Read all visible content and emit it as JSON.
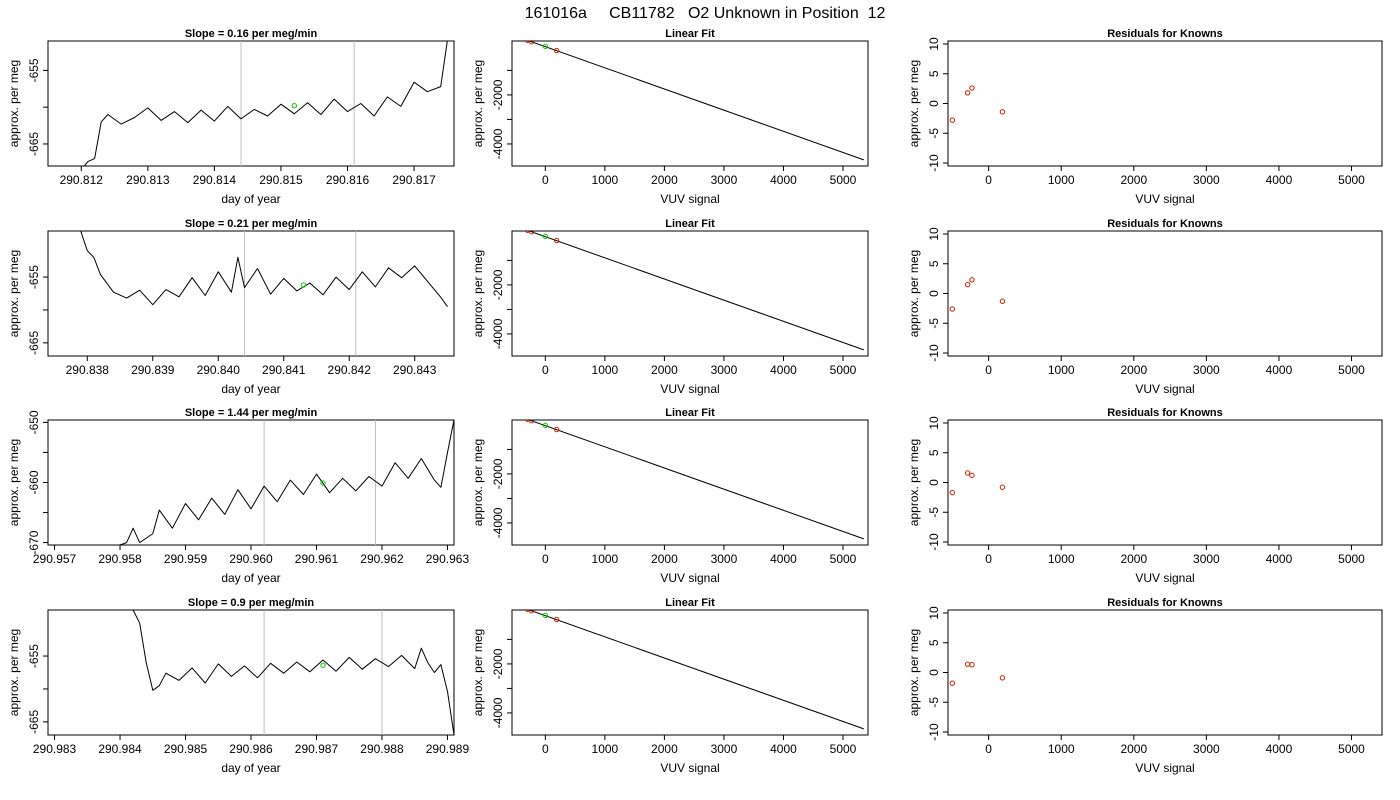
{
  "window": {
    "title": "161016a     CB11782   O2 Unknown in Position  12"
  },
  "colors": {
    "trace": "#000000",
    "vline": "#bebebe",
    "marker_green": "#00cc00",
    "marker_red": "#cc2200",
    "fit_line": "#000000"
  },
  "chart_data": [
    {
      "type": "line",
      "row": 1,
      "col": 1,
      "title": "Slope =  0.16  per meg/min",
      "xlabel": "day of year",
      "ylabel": "approx. per meg",
      "xlim": [
        290.8115,
        290.8176
      ],
      "ylim": [
        -668,
        -651
      ],
      "xticks": [
        290.812,
        290.813,
        290.814,
        290.815,
        290.816,
        290.817
      ],
      "xtick_labels": [
        "290.812",
        "290.813",
        "290.814",
        "290.815",
        "290.816",
        "290.817"
      ],
      "yticks": [
        -665,
        -660,
        -655
      ],
      "ytick_labels": [
        "-665",
        "",
        "-655"
      ],
      "vlines": [
        290.8144,
        290.8161
      ],
      "green_point": {
        "x": 290.8152,
        "y": -659.8
      },
      "trace": [
        [
          290.812,
          -668.5
        ],
        [
          290.8121,
          -667.4
        ],
        [
          290.8122,
          -667.0
        ],
        [
          290.8123,
          -662.0
        ],
        [
          290.8124,
          -661.0
        ],
        [
          290.8126,
          -662.3
        ],
        [
          290.8128,
          -661.4
        ],
        [
          290.813,
          -660.1
        ],
        [
          290.8132,
          -661.8
        ],
        [
          290.8134,
          -660.6
        ],
        [
          290.8136,
          -662.1
        ],
        [
          290.8138,
          -660.4
        ],
        [
          290.814,
          -661.9
        ],
        [
          290.8142,
          -659.9
        ],
        [
          290.8144,
          -661.6
        ],
        [
          290.8146,
          -660.3
        ],
        [
          290.8148,
          -661.2
        ],
        [
          290.815,
          -659.6
        ],
        [
          290.8152,
          -660.9
        ],
        [
          290.8154,
          -659.4
        ],
        [
          290.8156,
          -661.0
        ],
        [
          290.8158,
          -658.9
        ],
        [
          290.816,
          -660.6
        ],
        [
          290.8162,
          -659.5
        ],
        [
          290.8164,
          -661.2
        ],
        [
          290.8166,
          -658.6
        ],
        [
          290.8168,
          -659.9
        ],
        [
          290.817,
          -656.6
        ],
        [
          290.8172,
          -657.9
        ],
        [
          290.8174,
          -657.2
        ],
        [
          290.8175,
          -651.0
        ]
      ]
    },
    {
      "type": "line",
      "row": 1,
      "col": 2,
      "title": "Linear Fit",
      "xlabel": "VUV signal",
      "ylabel": "approx. per meg",
      "xlim": [
        -560,
        5420
      ],
      "ylim": [
        -4900,
        200
      ],
      "xticks": [
        0,
        1000,
        2000,
        3000,
        4000,
        5000
      ],
      "xtick_labels": [
        "0",
        "1000",
        "2000",
        "3000",
        "4000",
        "5000"
      ],
      "yticks": [
        -4000,
        -3000,
        -2000,
        -1000
      ],
      "ytick_labels": [
        "-4000",
        "",
        "-2000",
        ""
      ],
      "fit_line": [
        [
          -500,
          400
        ],
        [
          5350,
          -4650
        ]
      ],
      "red_points": [
        [
          -500,
          400
        ],
        [
          -300,
          230
        ],
        [
          -230,
          170
        ],
        [
          190,
          -190
        ]
      ],
      "green_point": [
        0,
        -20
      ]
    },
    {
      "type": "scatter",
      "row": 1,
      "col": 3,
      "title": "Residuals for Knowns",
      "xlabel": "VUV signal",
      "ylabel": "approx. per meg",
      "xlim": [
        -560,
        5420
      ],
      "ylim": [
        -10.5,
        10.5
      ],
      "xticks": [
        0,
        1000,
        2000,
        3000,
        4000,
        5000
      ],
      "xtick_labels": [
        "0",
        "1000",
        "2000",
        "3000",
        "4000",
        "5000"
      ],
      "yticks": [
        -10,
        -5,
        0,
        5,
        10
      ],
      "ytick_labels": [
        "-10",
        "-5",
        "0",
        "5",
        "10"
      ],
      "red_points": [
        [
          -500,
          -2.8
        ],
        [
          -290,
          1.8
        ],
        [
          -230,
          2.6
        ],
        [
          190,
          -1.4
        ]
      ]
    },
    {
      "type": "line",
      "row": 2,
      "col": 1,
      "title": "Slope =  0.21  per meg/min",
      "xlabel": "day of year",
      "ylabel": "approx. per meg",
      "xlim": [
        290.8374,
        290.8436
      ],
      "ylim": [
        -667,
        -648
      ],
      "xticks": [
        290.838,
        290.839,
        290.84,
        290.841,
        290.842,
        290.843
      ],
      "xtick_labels": [
        "290.838",
        "290.839",
        "290.840",
        "290.841",
        "290.842",
        "290.843"
      ],
      "yticks": [
        -665,
        -660,
        -655
      ],
      "ytick_labels": [
        "-665",
        "",
        "-655"
      ],
      "vlines": [
        290.8404,
        290.8421
      ],
      "green_point": {
        "x": 290.8413,
        "y": -656.2
      },
      "trace": [
        [
          290.8379,
          -648.0
        ],
        [
          290.838,
          -651.0
        ],
        [
          290.8381,
          -652.0
        ],
        [
          290.8382,
          -654.6
        ],
        [
          290.8384,
          -657.3
        ],
        [
          290.8386,
          -658.2
        ],
        [
          290.8388,
          -657.0
        ],
        [
          290.839,
          -659.2
        ],
        [
          290.8392,
          -656.9
        ],
        [
          290.8394,
          -658.0
        ],
        [
          290.8396,
          -655.1
        ],
        [
          290.8398,
          -657.8
        ],
        [
          290.84,
          -654.2
        ],
        [
          290.8402,
          -657.3
        ],
        [
          290.8403,
          -652.0
        ],
        [
          290.8404,
          -656.6
        ],
        [
          290.8406,
          -653.7
        ],
        [
          290.8408,
          -657.6
        ],
        [
          290.841,
          -655.2
        ],
        [
          290.8412,
          -657.1
        ],
        [
          290.8414,
          -655.9
        ],
        [
          290.8416,
          -657.7
        ],
        [
          290.8418,
          -655.0
        ],
        [
          290.842,
          -656.9
        ],
        [
          290.8422,
          -654.2
        ],
        [
          290.8424,
          -656.5
        ],
        [
          290.8426,
          -653.6
        ],
        [
          290.8428,
          -655.1
        ],
        [
          290.843,
          -653.3
        ],
        [
          290.8432,
          -655.7
        ],
        [
          290.8434,
          -658.1
        ],
        [
          290.8435,
          -659.5
        ]
      ]
    },
    {
      "type": "line",
      "row": 2,
      "col": 2,
      "title": "Linear Fit",
      "xlabel": "VUV signal",
      "ylabel": "approx. per meg",
      "xlim": [
        -560,
        5420
      ],
      "ylim": [
        -4900,
        200
      ],
      "xticks": [
        0,
        1000,
        2000,
        3000,
        4000,
        5000
      ],
      "xtick_labels": [
        "0",
        "1000",
        "2000",
        "3000",
        "4000",
        "5000"
      ],
      "yticks": [
        -4000,
        -3000,
        -2000,
        -1000
      ],
      "ytick_labels": [
        "-4000",
        "",
        "-2000",
        ""
      ],
      "fit_line": [
        [
          -500,
          400
        ],
        [
          5350,
          -4650
        ]
      ],
      "red_points": [
        [
          -500,
          400
        ],
        [
          -300,
          230
        ],
        [
          -230,
          170
        ],
        [
          190,
          -190
        ]
      ],
      "green_point": [
        0,
        -20
      ]
    },
    {
      "type": "scatter",
      "row": 2,
      "col": 3,
      "title": "Residuals for Knowns",
      "xlabel": "VUV signal",
      "ylabel": "approx. per meg",
      "xlim": [
        -560,
        5420
      ],
      "ylim": [
        -10.5,
        10.5
      ],
      "xticks": [
        0,
        1000,
        2000,
        3000,
        4000,
        5000
      ],
      "xtick_labels": [
        "0",
        "1000",
        "2000",
        "3000",
        "4000",
        "5000"
      ],
      "yticks": [
        -10,
        -5,
        0,
        5,
        10
      ],
      "ytick_labels": [
        "-10",
        "-5",
        "0",
        "5",
        "10"
      ],
      "red_points": [
        [
          -500,
          -2.6
        ],
        [
          -290,
          1.5
        ],
        [
          -230,
          2.3
        ],
        [
          190,
          -1.3
        ]
      ]
    },
    {
      "type": "line",
      "row": 3,
      "col": 1,
      "title": "Slope =  1.44  per meg/min",
      "xlabel": "day of year",
      "ylabel": "approx. per meg",
      "xlim": [
        290.9569,
        290.9631
      ],
      "ylim": [
        -670.4,
        -649.6
      ],
      "xticks": [
        290.957,
        290.958,
        290.959,
        290.96,
        290.961,
        290.962,
        290.963
      ],
      "xtick_labels": [
        "290.957",
        "290.958",
        "290.959",
        "290.960",
        "290.961",
        "290.962",
        "290.963"
      ],
      "yticks": [
        -670,
        -665,
        -660,
        -655,
        -650
      ],
      "ytick_labels": [
        "-670",
        "",
        "-660",
        "",
        "-650"
      ],
      "vlines": [
        290.9602,
        290.9619
      ],
      "green_point": {
        "x": 290.9611,
        "y": -660.1
      },
      "trace": [
        [
          290.958,
          -670.4
        ],
        [
          290.9581,
          -670.0
        ],
        [
          290.9582,
          -667.6
        ],
        [
          290.9583,
          -670.0
        ],
        [
          290.9585,
          -668.5
        ],
        [
          290.9586,
          -664.6
        ],
        [
          290.9588,
          -667.6
        ],
        [
          290.959,
          -663.5
        ],
        [
          290.9592,
          -666.2
        ],
        [
          290.9594,
          -662.6
        ],
        [
          290.9596,
          -665.3
        ],
        [
          290.9598,
          -661.2
        ],
        [
          290.96,
          -664.4
        ],
        [
          290.9602,
          -660.6
        ],
        [
          290.9604,
          -663.2
        ],
        [
          290.9606,
          -659.6
        ],
        [
          290.9608,
          -662.0
        ],
        [
          290.961,
          -658.6
        ],
        [
          290.9612,
          -661.7
        ],
        [
          290.9614,
          -659.3
        ],
        [
          290.9616,
          -661.4
        ],
        [
          290.9618,
          -659.0
        ],
        [
          290.962,
          -660.6
        ],
        [
          290.9622,
          -656.7
        ],
        [
          290.9624,
          -659.3
        ],
        [
          290.9626,
          -656.0
        ],
        [
          290.9628,
          -659.6
        ],
        [
          290.9629,
          -660.8
        ],
        [
          290.963,
          -655.0
        ],
        [
          290.9631,
          -649.6
        ]
      ]
    },
    {
      "type": "line",
      "row": 3,
      "col": 2,
      "title": "Linear Fit",
      "xlabel": "VUV signal",
      "ylabel": "approx. per meg",
      "xlim": [
        -560,
        5420
      ],
      "ylim": [
        -4900,
        200
      ],
      "xticks": [
        0,
        1000,
        2000,
        3000,
        4000,
        5000
      ],
      "xtick_labels": [
        "0",
        "1000",
        "2000",
        "3000",
        "4000",
        "5000"
      ],
      "yticks": [
        -4000,
        -3000,
        -2000,
        -1000
      ],
      "ytick_labels": [
        "-4000",
        "",
        "-2000",
        ""
      ],
      "fit_line": [
        [
          -500,
          400
        ],
        [
          5350,
          -4650
        ]
      ],
      "red_points": [
        [
          -500,
          400
        ],
        [
          -300,
          230
        ],
        [
          -230,
          170
        ],
        [
          190,
          -190
        ]
      ],
      "green_point": [
        0,
        -20
      ]
    },
    {
      "type": "scatter",
      "row": 3,
      "col": 3,
      "title": "Residuals for Knowns",
      "xlabel": "VUV signal",
      "ylabel": "approx. per meg",
      "xlim": [
        -560,
        5420
      ],
      "ylim": [
        -10.5,
        10.5
      ],
      "xticks": [
        0,
        1000,
        2000,
        3000,
        4000,
        5000
      ],
      "xtick_labels": [
        "0",
        "1000",
        "2000",
        "3000",
        "4000",
        "5000"
      ],
      "yticks": [
        -10,
        -5,
        0,
        5,
        10
      ],
      "ytick_labels": [
        "-10",
        "-5",
        "0",
        "5",
        "10"
      ],
      "red_points": [
        [
          -500,
          -1.7
        ],
        [
          -290,
          1.6
        ],
        [
          -230,
          1.2
        ],
        [
          190,
          -0.8
        ]
      ]
    },
    {
      "type": "line",
      "row": 4,
      "col": 1,
      "title": "Slope =  0.9  per meg/min",
      "xlabel": "day of year",
      "ylabel": "approx. per meg",
      "xlim": [
        290.9829,
        290.9891
      ],
      "ylim": [
        -667,
        -648
      ],
      "xticks": [
        290.983,
        290.984,
        290.985,
        290.986,
        290.987,
        290.988,
        290.989
      ],
      "xtick_labels": [
        "290.983",
        "290.984",
        "290.985",
        "290.986",
        "290.987",
        "290.988",
        "290.989"
      ],
      "yticks": [
        -665,
        -660,
        -655
      ],
      "ytick_labels": [
        "-665",
        "",
        "-655"
      ],
      "vlines": [
        290.9862,
        290.988
      ],
      "green_point": {
        "x": 290.9871,
        "y": -656.4
      },
      "trace": [
        [
          290.9842,
          -648.0
        ],
        [
          290.9843,
          -650.0
        ],
        [
          290.9844,
          -656.0
        ],
        [
          290.9845,
          -660.2
        ],
        [
          290.9846,
          -659.5
        ],
        [
          290.9847,
          -657.6
        ],
        [
          290.9849,
          -658.7
        ],
        [
          290.9851,
          -656.8
        ],
        [
          290.9853,
          -659.1
        ],
        [
          290.9855,
          -656.2
        ],
        [
          290.9857,
          -658.1
        ],
        [
          290.9859,
          -656.5
        ],
        [
          290.9861,
          -658.3
        ],
        [
          290.9863,
          -656.1
        ],
        [
          290.9865,
          -657.6
        ],
        [
          290.9867,
          -655.9
        ],
        [
          290.9869,
          -657.4
        ],
        [
          290.9871,
          -655.6
        ],
        [
          290.9873,
          -657.3
        ],
        [
          290.9875,
          -655.2
        ],
        [
          290.9877,
          -657.0
        ],
        [
          290.9879,
          -655.4
        ],
        [
          290.9881,
          -656.6
        ],
        [
          290.9883,
          -654.9
        ],
        [
          290.9885,
          -656.9
        ],
        [
          290.9886,
          -653.8
        ],
        [
          290.9887,
          -656.0
        ],
        [
          290.9888,
          -657.5
        ],
        [
          290.9889,
          -656.3
        ],
        [
          290.989,
          -660.4
        ],
        [
          290.9891,
          -667.0
        ]
      ]
    },
    {
      "type": "line",
      "row": 4,
      "col": 2,
      "title": "Linear Fit",
      "xlabel": "VUV signal",
      "ylabel": "approx. per meg",
      "xlim": [
        -560,
        5420
      ],
      "ylim": [
        -4900,
        200
      ],
      "xticks": [
        0,
        1000,
        2000,
        3000,
        4000,
        5000
      ],
      "xtick_labels": [
        "0",
        "1000",
        "2000",
        "3000",
        "4000",
        "5000"
      ],
      "yticks": [
        -4000,
        -3000,
        -2000,
        -1000
      ],
      "ytick_labels": [
        "-4000",
        "",
        "-2000",
        ""
      ],
      "fit_line": [
        [
          -500,
          400
        ],
        [
          5350,
          -4650
        ]
      ],
      "red_points": [
        [
          -500,
          400
        ],
        [
          -300,
          230
        ],
        [
          -230,
          170
        ],
        [
          190,
          -190
        ]
      ],
      "green_point": [
        0,
        -20
      ]
    },
    {
      "type": "scatter",
      "row": 4,
      "col": 3,
      "title": "Residuals for Knowns",
      "xlabel": "VUV signal",
      "ylabel": "approx. per meg",
      "xlim": [
        -560,
        5420
      ],
      "ylim": [
        -10.5,
        10.5
      ],
      "xticks": [
        0,
        1000,
        2000,
        3000,
        4000,
        5000
      ],
      "xtick_labels": [
        "0",
        "1000",
        "2000",
        "3000",
        "4000",
        "5000"
      ],
      "yticks": [
        -10,
        -5,
        0,
        5,
        10
      ],
      "ytick_labels": [
        "-10",
        "-5",
        "0",
        "5",
        "10"
      ],
      "red_points": [
        [
          -500,
          -1.8
        ],
        [
          -290,
          1.4
        ],
        [
          -230,
          1.3
        ],
        [
          190,
          -0.9
        ]
      ]
    }
  ]
}
